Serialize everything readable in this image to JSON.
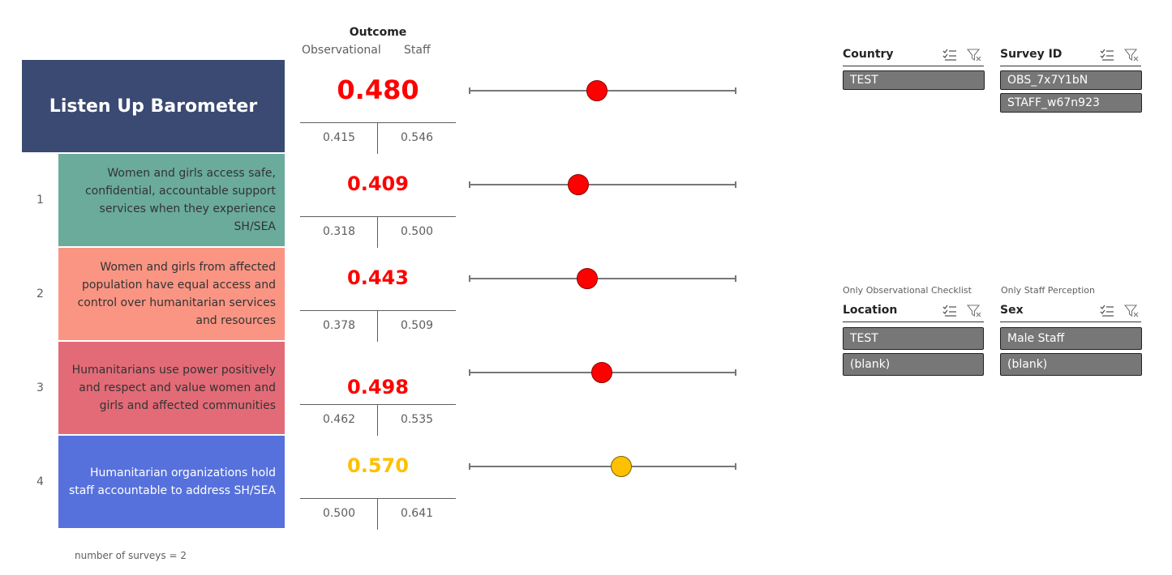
{
  "header": {
    "outcome_label": "Outcome",
    "observational_label": "Observational",
    "staff_label": "Staff"
  },
  "title": "Listen Up Barometer",
  "overall": {
    "score": "0.480",
    "observational": "0.415",
    "staff": "0.546",
    "value": 0.48,
    "color": "#ff0000"
  },
  "pillars": [
    {
      "number": "1",
      "text": "Women and girls access safe, confidential, accountable support services when they experience SH/SEA",
      "bg": "#6aab9c",
      "score": "0.409",
      "observational": "0.318",
      "staff": "0.500",
      "value": 0.409,
      "color": "#ff0000"
    },
    {
      "number": "2",
      "text": "Women and girls from affected population have equal access and control over humanitarian services and resources",
      "bg": "#fa9583",
      "score": "0.443",
      "observational": "0.378",
      "staff": "0.509",
      "value": 0.443,
      "color": "#ff0000"
    },
    {
      "number": "3",
      "text": "Humanitarians use power positively and respect and value women and girls and affected communities",
      "bg": "#e36b77",
      "score": "0.498",
      "observational": "0.462",
      "staff": "0.535",
      "value": 0.498,
      "color": "#ff0000"
    },
    {
      "number": "4",
      "text": "Humanitarian organizations hold staff accountable to address SH/SEA",
      "bg": "#5671dc",
      "score": "0.570",
      "observational": "0.500",
      "staff": "0.641",
      "value": 0.57,
      "color": "#ffc000"
    }
  ],
  "footnote": "number of surveys = 2",
  "slicers": {
    "country": {
      "title": "Country",
      "items": [
        "TEST"
      ]
    },
    "survey_id": {
      "title": "Survey ID",
      "items": [
        "OBS_7x7Y1bN",
        "STAFF_w67n923"
      ]
    },
    "location": {
      "note": "Only Observational Checklist",
      "title": "Location",
      "items": [
        "TEST",
        "(blank)"
      ]
    },
    "sex": {
      "note": "Only Staff Perception",
      "title": "Sex",
      "items": [
        "Male Staff",
        "(blank)"
      ]
    }
  },
  "icons": {
    "select_all": "select-all-icon",
    "clear_filter": "clear-filter-icon"
  }
}
